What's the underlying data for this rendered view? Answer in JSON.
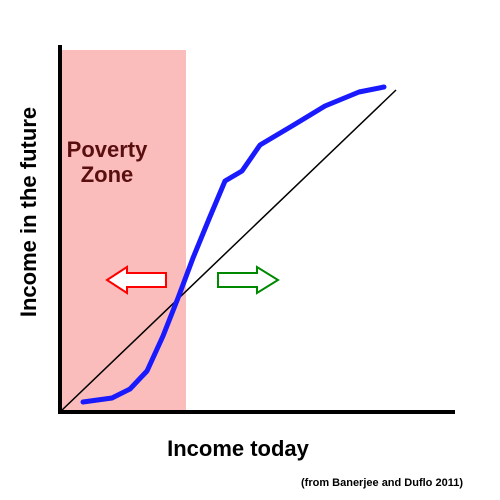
{
  "diagram": {
    "zone_label_line1": "Poverty",
    "zone_label_line2": "Zone",
    "x_axis_label": "Income today",
    "y_axis_label": "Income in the future",
    "source_note": "(from Banerjee and Duflo 2011)"
  },
  "colors": {
    "poverty_zone_fill": "#fbbcbc",
    "poverty_zone_text": "#5a0f0f",
    "curve": "#1a1aff",
    "diagonal": "#000000",
    "axes": "#000000",
    "left_arrow": "#ff0000",
    "right_arrow": "#008800"
  },
  "icons": {
    "left_arrow": "left-arrow-icon",
    "right_arrow": "right-arrow-icon"
  }
}
